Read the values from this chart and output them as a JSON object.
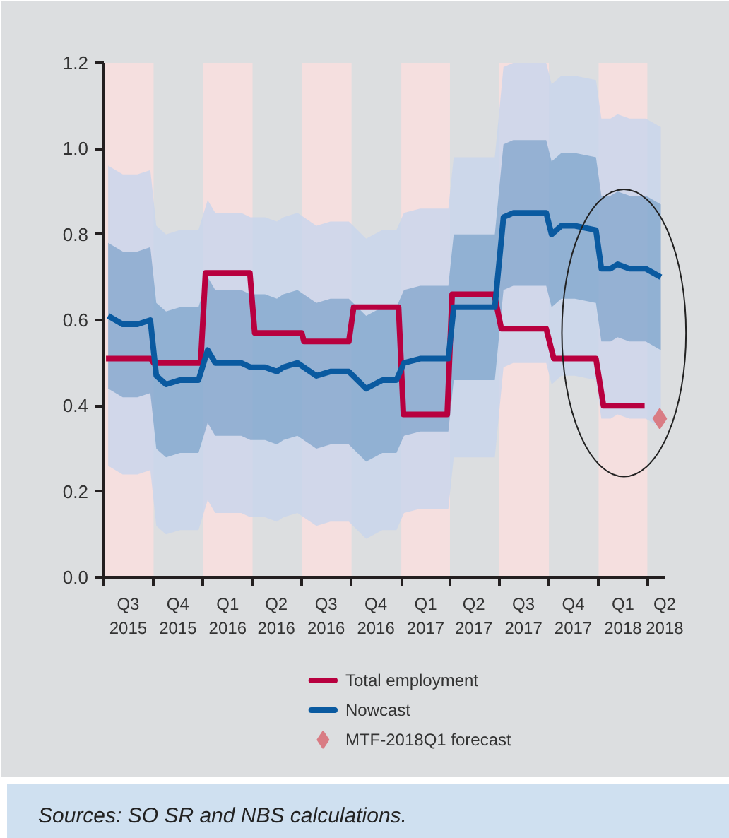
{
  "chart_data": {
    "type": "line",
    "x": [
      "2015-07-09",
      "2015-08-05",
      "2015-09-01",
      "2015-09-25",
      "2015-10-06",
      "2015-10-24",
      "2015-11-19",
      "2015-12-23",
      "2016-01-09",
      "2016-01-23",
      "2016-03-11",
      "2016-03-28",
      "2016-04-24",
      "2016-05-16",
      "2016-05-28",
      "2016-06-23",
      "2016-07-28",
      "2016-08-23",
      "2016-09-26",
      "2016-10-28",
      "2016-11-27",
      "2016-12-23",
      "2017-01-06",
      "2017-02-05",
      "2017-03-04",
      "2017-03-29",
      "2017-04-08",
      "2017-05-02",
      "2017-06-23",
      "2017-07-09",
      "2017-07-27",
      "2017-08-14",
      "2017-09-14",
      "2017-09-26",
      "2017-10-06",
      "2017-10-24",
      "2017-11-18",
      "2017-12-27",
      "2018-01-06",
      "2018-01-23",
      "2018-02-05",
      "2018-02-27",
      "2018-03-21",
      "2018-03-29",
      "2018-04-26"
    ],
    "series": [
      {
        "color": "#c8d4ec",
        "values": [
          null,
          null,
          null,
          null,
          null,
          null,
          null,
          null,
          null,
          null,
          null,
          null,
          null,
          null,
          null,
          null,
          null,
          null,
          null,
          null,
          null,
          null,
          null,
          null,
          null,
          null,
          null,
          null,
          null,
          null,
          null,
          null,
          null,
          null,
          null,
          null,
          null,
          null,
          null,
          null,
          null,
          null,
          null,
          null,
          null
        ],
        "lower": [
          0.26,
          0.24,
          0.24,
          0.25,
          0.12,
          0.1,
          0.11,
          0.11,
          0.18,
          0.15,
          0.15,
          0.14,
          0.14,
          0.13,
          0.14,
          0.15,
          0.12,
          0.13,
          0.13,
          0.09,
          0.11,
          0.11,
          0.15,
          0.16,
          0.16,
          0.16,
          0.28,
          0.28,
          0.28,
          0.49,
          0.5,
          0.5,
          0.5,
          0.5,
          0.45,
          0.47,
          0.47,
          0.46,
          0.37,
          0.37,
          0.38,
          0.37,
          0.37,
          0.37,
          0.35
        ],
        "upper": [
          0.96,
          0.94,
          0.94,
          0.95,
          0.82,
          0.8,
          0.81,
          0.81,
          0.88,
          0.85,
          0.85,
          0.84,
          0.84,
          0.83,
          0.84,
          0.85,
          0.82,
          0.83,
          0.83,
          0.79,
          0.81,
          0.81,
          0.85,
          0.86,
          0.86,
          0.86,
          0.98,
          0.98,
          0.98,
          1.19,
          1.2,
          1.2,
          1.2,
          1.2,
          1.15,
          1.17,
          1.17,
          1.16,
          1.07,
          1.07,
          1.08,
          1.07,
          1.07,
          1.07,
          1.05
        ]
      },
      {
        "name": "Total employment",
        "color": "#b8003f",
        "x": [
          "2015-07-05",
          "2015-09-26",
          "2015-10-01",
          "2015-12-27",
          "2016-01-05",
          "2016-03-27",
          "2016-04-05",
          "2016-07-01",
          "2016-07-05",
          "2016-09-26",
          "2016-10-05",
          "2016-12-27",
          "2017-01-05",
          "2017-03-27",
          "2017-04-05",
          "2017-06-22",
          "2017-07-05",
          "2017-09-26",
          "2017-10-10",
          "2017-12-27",
          "2018-01-10",
          "2018-03-27"
        ],
        "values": [
          0.51,
          0.51,
          0.5,
          0.5,
          0.71,
          0.71,
          0.57,
          0.57,
          0.55,
          0.55,
          0.63,
          0.63,
          0.38,
          0.38,
          0.66,
          0.66,
          0.58,
          0.58,
          0.51,
          0.51,
          0.4,
          0.4
        ]
      },
      {
        "name": "Nowcast",
        "color": "#0a5aa0",
        "values": [
          0.61,
          0.59,
          0.59,
          0.6,
          0.47,
          0.45,
          0.46,
          0.46,
          0.53,
          0.5,
          0.5,
          0.49,
          0.49,
          0.48,
          0.49,
          0.5,
          0.47,
          0.48,
          0.48,
          0.44,
          0.46,
          0.46,
          0.5,
          0.51,
          0.51,
          0.51,
          0.63,
          0.63,
          0.63,
          0.84,
          0.85,
          0.85,
          0.85,
          0.85,
          0.8,
          0.82,
          0.82,
          0.81,
          0.72,
          0.72,
          0.73,
          0.72,
          0.72,
          0.72,
          0.7
        ],
        "lower": [
          0.44,
          0.42,
          0.42,
          0.43,
          0.3,
          0.28,
          0.29,
          0.29,
          0.36,
          0.33,
          0.33,
          0.32,
          0.32,
          0.31,
          0.32,
          0.33,
          0.3,
          0.31,
          0.31,
          0.27,
          0.29,
          0.29,
          0.33,
          0.34,
          0.34,
          0.34,
          0.46,
          0.46,
          0.46,
          0.67,
          0.68,
          0.68,
          0.68,
          0.68,
          0.63,
          0.65,
          0.65,
          0.64,
          0.55,
          0.55,
          0.56,
          0.55,
          0.55,
          0.55,
          0.53
        ],
        "upper": [
          0.78,
          0.76,
          0.76,
          0.77,
          0.64,
          0.62,
          0.63,
          0.63,
          0.7,
          0.67,
          0.67,
          0.66,
          0.66,
          0.65,
          0.66,
          0.67,
          0.64,
          0.65,
          0.65,
          0.61,
          0.63,
          0.63,
          0.67,
          0.68,
          0.68,
          0.68,
          0.8,
          0.8,
          0.8,
          1.01,
          1.02,
          1.02,
          1.02,
          1.02,
          0.97,
          0.99,
          0.99,
          0.98,
          0.89,
          0.89,
          0.9,
          0.89,
          0.89,
          0.89,
          0.87
        ]
      },
      {
        "type": "scatter",
        "name": "MTF-2018Q1 forecast",
        "color": "#d97c84",
        "marker": "diamond",
        "x": [
          "2018-04-24"
        ],
        "values": [
          0.37
        ]
      }
    ],
    "bands": [
      {
        "axis": "x",
        "from": "2015-07-01",
        "to": "2015-10-01",
        "color": "#f5dfdf"
      },
      {
        "axis": "x",
        "from": "2016-01-01",
        "to": "2016-04-01",
        "color": "#f5dfdf"
      },
      {
        "axis": "x",
        "from": "2016-07-01",
        "to": "2016-10-01",
        "color": "#f5dfdf"
      },
      {
        "axis": "x",
        "from": "2017-01-01",
        "to": "2017-04-01",
        "color": "#f5dfdf"
      },
      {
        "axis": "x",
        "from": "2017-07-01",
        "to": "2017-10-01",
        "color": "#f5dfdf"
      },
      {
        "axis": "x",
        "from": "2018-01-01",
        "to": "2018-04-01",
        "color": "#f5dfdf"
      }
    ],
    "xlim": [
      "2015-07-01",
      "2018-05-03"
    ],
    "xticks": [
      {
        "value": "2015-07-01",
        "label": null
      },
      {
        "value": "2015-10-01",
        "label": null
      },
      {
        "value": "2016-01-01",
        "label": null
      },
      {
        "value": "2016-04-01",
        "label": null
      },
      {
        "value": "2016-07-01",
        "label": null
      },
      {
        "value": "2016-10-01",
        "label": null
      },
      {
        "value": "2017-01-01",
        "label": null
      },
      {
        "value": "2017-04-01",
        "label": null
      },
      {
        "value": "2017-07-01",
        "label": null
      },
      {
        "value": "2017-10-01",
        "label": null
      },
      {
        "value": "2018-01-01",
        "label": null
      },
      {
        "value": "2018-04-01",
        "label": null
      },
      {
        "value": "2015-08-15",
        "label": "Q3\n2015"
      },
      {
        "value": "2015-11-15",
        "label": "Q4\n2015"
      },
      {
        "value": "2016-02-15",
        "label": "Q1\n2016"
      },
      {
        "value": "2016-05-15",
        "label": "Q2\n2016"
      },
      {
        "value": "2016-08-15",
        "label": "Q3\n2016"
      },
      {
        "value": "2016-11-15",
        "label": "Q4\n2016"
      },
      {
        "value": "2017-02-15",
        "label": "Q1\n2017"
      },
      {
        "value": "2017-05-15",
        "label": "Q2\n2017"
      },
      {
        "value": "2017-08-15",
        "label": "Q3\n2017"
      },
      {
        "value": "2017-11-15",
        "label": "Q4\n2017"
      },
      {
        "value": "2018-02-15",
        "label": "Q1\n2018"
      },
      {
        "value": "2018-05-03",
        "label": "Q2\n2018"
      }
    ],
    "ylim": [
      0,
      1.2
    ],
    "yticks": [
      {
        "value": 0,
        "label": "0.0"
      },
      0.2,
      0.4,
      0.6,
      0.8,
      {
        "value": 1.0,
        "label": "1.0"
      },
      1.2
    ],
    "legend": "bottom",
    "line_style": "solid",
    "annotations": [
      "Sources: SO SR and NBS calculations."
    ]
  }
}
